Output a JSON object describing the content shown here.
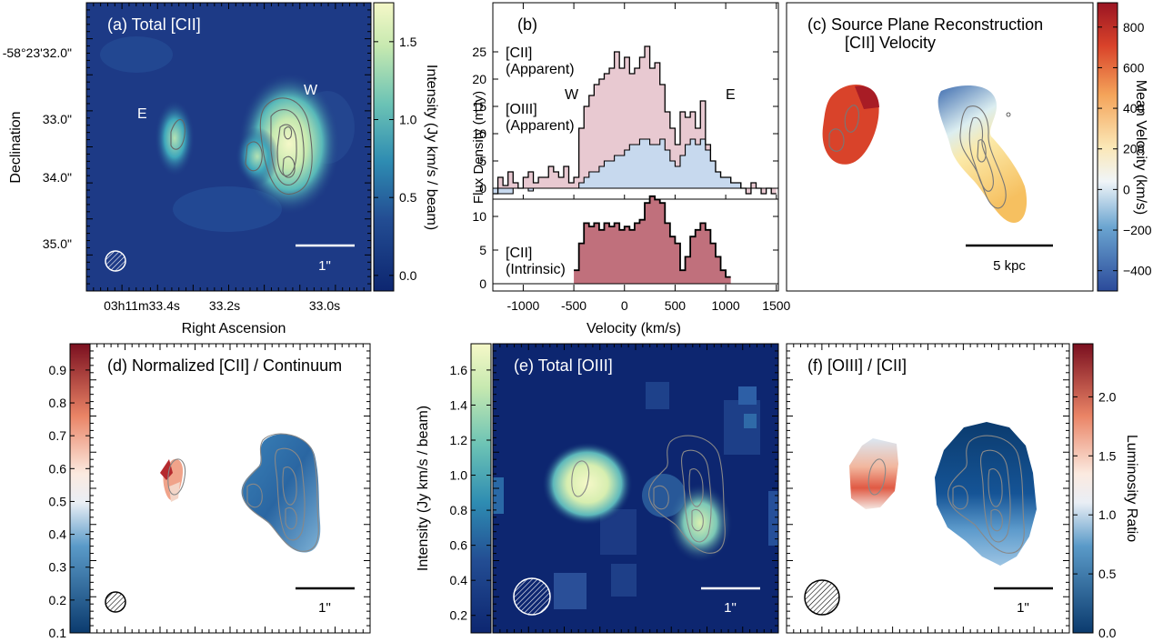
{
  "panels": {
    "a": {
      "title": "(a) Total [CII]",
      "labels": [
        "E",
        "W"
      ],
      "scalebar": "1\"",
      "colorbar_label": "Intensity (Jy km/s / beam)",
      "colorbar_ticks": [
        "0.0",
        "0.5",
        "1.0",
        "1.5"
      ],
      "colorbar_values": [
        0.0,
        0.5,
        1.0,
        1.5
      ],
      "colorbar_range": [
        -0.1,
        1.75
      ],
      "dec_ticks": [
        "-58°23'32.0\"",
        "33.0\"",
        "34.0\"",
        "35.0\""
      ],
      "ra_ticks": [
        "03h11m33.4s",
        "33.2s",
        "33.0s"
      ],
      "ylabel": "Declination",
      "xlabel": "Right Ascension"
    },
    "b": {
      "title": "(b)",
      "ylabel": "Flux Density (mJy)",
      "xlabel": "Velocity (km/s)",
      "cii_label": [
        "[CII]",
        "(Apparent)"
      ],
      "oiii_label": [
        "[OIII]",
        "(Apparent)"
      ],
      "intrinsic_label": [
        "[CII]",
        "(Intrinsic)"
      ],
      "mark_w": "W",
      "mark_e": "E"
    },
    "c": {
      "title": [
        "(c) Source Plane Reconstruction",
        "[CII] Velocity"
      ],
      "scalebar": "5 kpc",
      "colorbar_label": "Mean Velocity (km/s)",
      "colorbar_ticks": [
        "800",
        "600",
        "400",
        "200",
        "0",
        "−200",
        "−400"
      ],
      "colorbar_values": [
        800,
        600,
        400,
        200,
        0,
        -200,
        -400
      ],
      "colorbar_range": [
        -500,
        920
      ]
    },
    "d": {
      "title": "(d) Normalized [CII] / Continuum",
      "scalebar": "1\"",
      "colorbar_ticks": [
        "0.9",
        "0.8",
        "0.7",
        "0.6",
        "0.5",
        "0.4",
        "0.3",
        "0.2",
        "0.1"
      ],
      "colorbar_values": [
        0.9,
        0.8,
        0.7,
        0.6,
        0.5,
        0.4,
        0.3,
        0.2,
        0.1
      ],
      "colorbar_range": [
        0.1,
        0.98
      ]
    },
    "e": {
      "title": "(e) Total [OIII]",
      "scalebar": "1\"",
      "colorbar_label": "Intensity (Jy km/s / beam)",
      "colorbar_ticks": [
        "1.6",
        "1.4",
        "1.2",
        "1.0",
        "0.8",
        "0.6",
        "0.4",
        "0.2"
      ],
      "colorbar_values": [
        1.6,
        1.4,
        1.2,
        1.0,
        0.8,
        0.6,
        0.4,
        0.2
      ],
      "colorbar_range": [
        0.1,
        1.75
      ]
    },
    "f": {
      "title": "(f) [OIII] / [CII]",
      "scalebar": "1\"",
      "colorbar_label": "Luminosity Ratio",
      "colorbar_ticks": [
        "2.0",
        "1.5",
        "1.0",
        "0.5",
        "0.0"
      ],
      "colorbar_values": [
        2.0,
        1.5,
        1.0,
        0.5,
        0.0
      ],
      "colorbar_range": [
        0.0,
        2.45
      ]
    }
  },
  "chart_data": [
    {
      "type": "heatmap",
      "title": "(a) Total [CII]",
      "xlabel": "Right Ascension",
      "ylabel": "Declination",
      "colorbar_label": "Intensity (Jy km/s / beam)",
      "colorbar_range": [
        -0.1,
        1.75
      ]
    },
    {
      "type": "area",
      "title": "(b)",
      "xlabel": "Velocity (km/s)",
      "ylabel": "Flux Density (mJy)",
      "xlim": [
        -1300,
        1520
      ],
      "x_ticks": [
        -1000,
        -500,
        0,
        500,
        1000,
        1500
      ],
      "upper_yticks": [
        0,
        5,
        10,
        15,
        20,
        25
      ],
      "lower_yticks": [
        0,
        5,
        10
      ],
      "series": [
        {
          "name": "[CII] (Apparent)",
          "step_edges": [
            -1300,
            -1250,
            -1200,
            -1150,
            -1100,
            -1050,
            -1000,
            -950,
            -900,
            -850,
            -800,
            -750,
            -700,
            -650,
            -600,
            -550,
            -500,
            -450,
            -400,
            -350,
            -300,
            -250,
            -200,
            -150,
            -100,
            -50,
            0,
            50,
            100,
            150,
            200,
            250,
            300,
            350,
            400,
            450,
            500,
            550,
            600,
            650,
            700,
            750,
            800,
            850,
            900,
            950,
            1000,
            1050,
            1100,
            1150,
            1200,
            1250,
            1300,
            1350,
            1400,
            1450,
            1500
          ],
          "values": [
            -1,
            2,
            0.5,
            3,
            1,
            0,
            2,
            3,
            1,
            2,
            2,
            4,
            3,
            2,
            4,
            1,
            2,
            11,
            15,
            17,
            19,
            20,
            21,
            22,
            25,
            22,
            24,
            21,
            22,
            24,
            26,
            22,
            23,
            19,
            14,
            11,
            8,
            14,
            13,
            14,
            11,
            16,
            8,
            5,
            3,
            2,
            2,
            1,
            1,
            0,
            -1,
            1,
            0,
            -1,
            0,
            -1
          ]
        },
        {
          "name": "[OIII] (Apparent)",
          "step_edges": [
            -1300,
            -1250,
            -1200,
            -1150,
            -1100,
            -1050,
            -1000,
            -950,
            -900,
            -850,
            -800,
            -750,
            -700,
            -650,
            -600,
            -550,
            -500,
            -450,
            -400,
            -350,
            -300,
            -250,
            -200,
            -150,
            -100,
            -50,
            0,
            50,
            100,
            150,
            200,
            250,
            300,
            350,
            400,
            450,
            500,
            550,
            600,
            650,
            700,
            750,
            800,
            850,
            900,
            950,
            1000,
            1050,
            1100,
            1150,
            1200,
            1250,
            1300,
            1350,
            1400,
            1450,
            1500
          ],
          "values": [
            -1,
            -1,
            -1,
            -1,
            0,
            0,
            0,
            -0.5,
            0,
            0,
            0,
            0,
            0,
            0,
            0,
            0,
            0,
            1,
            2,
            3,
            3,
            4,
            5,
            5,
            6,
            6,
            7,
            8,
            8,
            9,
            9,
            8,
            8,
            9,
            7,
            5,
            4,
            6,
            8,
            9,
            8,
            9,
            7,
            5,
            3,
            2,
            2,
            1,
            1,
            0,
            0,
            0,
            0,
            0,
            0,
            0
          ]
        },
        {
          "name": "[CII] (Intrinsic)",
          "step_edges": [
            -500,
            -450,
            -400,
            -350,
            -300,
            -250,
            -200,
            -150,
            -100,
            -50,
            0,
            50,
            100,
            150,
            200,
            250,
            300,
            350,
            400,
            450,
            500,
            550,
            600,
            650,
            700,
            750,
            800,
            850,
            900,
            950,
            1000,
            1050
          ],
          "values": [
            2,
            6,
            9,
            8.5,
            9,
            8,
            9,
            8.5,
            9,
            8,
            8.5,
            8,
            9,
            9.5,
            12,
            13,
            12.5,
            12,
            9,
            7,
            6,
            2,
            4,
            7,
            8,
            9,
            8,
            6,
            4,
            2,
            1
          ]
        }
      ]
    },
    {
      "type": "heatmap",
      "title": "(c) Source Plane Reconstruction [CII] Velocity",
      "colorbar_label": "Mean Velocity (km/s)",
      "colorbar_range": [
        -500,
        920
      ]
    },
    {
      "type": "heatmap",
      "title": "(d) Normalized [CII] / Continuum",
      "colorbar_range": [
        0.1,
        0.98
      ]
    },
    {
      "type": "heatmap",
      "title": "(e) Total [OIII]",
      "colorbar_label": "Intensity (Jy km/s / beam)",
      "colorbar_range": [
        0.1,
        1.75
      ]
    },
    {
      "type": "heatmap",
      "title": "(f) [OIII] / [CII]",
      "colorbar_label": "Luminosity Ratio",
      "colorbar_range": [
        0.0,
        2.45
      ]
    }
  ]
}
